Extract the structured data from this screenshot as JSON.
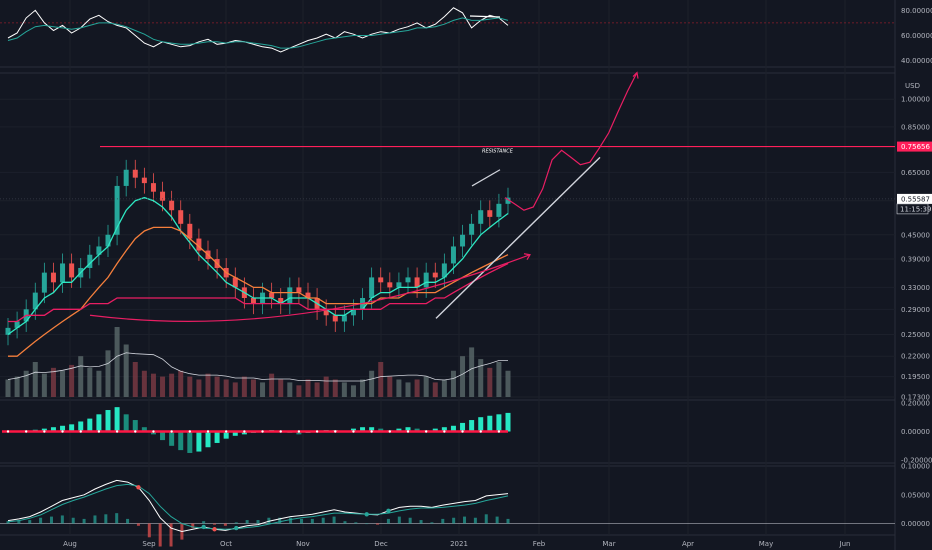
{
  "chart_data": [
    {
      "type": "line",
      "panel": "oscillator-top",
      "ylim": [
        35,
        85
      ],
      "ticks": [
        "80.00000",
        "60.00000",
        "40.00000"
      ],
      "tick_values": [
        80,
        60,
        40
      ],
      "overbought_level": 70,
      "series": [
        {
          "color": "#ffffff",
          "values": [
            58,
            62,
            74,
            80,
            70,
            64,
            68,
            62,
            66,
            73,
            76,
            71,
            68,
            66,
            60,
            54,
            51,
            55,
            53,
            51,
            52,
            55,
            57,
            53,
            54,
            56,
            55,
            53,
            51,
            50,
            47,
            50,
            53,
            56,
            58,
            61,
            58,
            63,
            61,
            58,
            61,
            63,
            62,
            65,
            67,
            70,
            66,
            69,
            75,
            82,
            78,
            66,
            72,
            76,
            74,
            68
          ]
        },
        {
          "color": "#26a69a",
          "values": [
            56,
            58,
            63,
            67,
            68,
            67,
            66,
            65,
            66,
            68,
            70,
            70,
            69,
            67,
            64,
            61,
            57,
            55,
            54,
            53,
            53,
            54,
            55,
            55,
            54,
            55,
            55,
            54,
            53,
            52,
            50,
            50,
            51,
            53,
            55,
            57,
            58,
            59,
            60,
            60,
            60,
            61,
            62,
            63,
            64,
            66,
            66,
            67,
            69,
            72,
            74,
            72,
            72,
            73,
            74,
            72
          ]
        }
      ]
    },
    {
      "type": "candlestick",
      "panel": "price",
      "unit_label": "USD",
      "scale": "log",
      "ylim": [
        0.173,
        1.12
      ],
      "ticks": [
        "1.00000",
        "0.85000",
        "0.65000",
        "0.55000",
        "0.45000",
        "0.39000",
        "0.33000",
        "0.29000",
        "0.25000",
        "0.22000",
        "0.19500",
        "0.17300"
      ],
      "tick_values": [
        1.0,
        0.85,
        0.65,
        0.55,
        0.45,
        0.39,
        0.33,
        0.29,
        0.25,
        0.22,
        0.195,
        0.173
      ],
      "x_labels": [
        "Aug",
        "Sep",
        "Oct",
        "Nov",
        "Dec",
        "2021",
        "Feb",
        "Mar",
        "Apr",
        "May",
        "Jun"
      ],
      "resistance": {
        "value": 0.75656,
        "label": "0.75656",
        "annotation": "RESISTANCE"
      },
      "last_price": {
        "value": 0.55587,
        "label": "0.55587",
        "countdown": "11:15:39"
      },
      "close": [
        0.26,
        0.27,
        0.29,
        0.32,
        0.36,
        0.34,
        0.38,
        0.35,
        0.37,
        0.4,
        0.42,
        0.45,
        0.6,
        0.66,
        0.63,
        0.61,
        0.58,
        0.55,
        0.52,
        0.48,
        0.44,
        0.41,
        0.39,
        0.37,
        0.35,
        0.33,
        0.31,
        0.3,
        0.32,
        0.31,
        0.3,
        0.33,
        0.32,
        0.31,
        0.29,
        0.28,
        0.27,
        0.28,
        0.29,
        0.31,
        0.35,
        0.34,
        0.33,
        0.34,
        0.35,
        0.33,
        0.36,
        0.35,
        0.38,
        0.42,
        0.45,
        0.48,
        0.52,
        0.5,
        0.54,
        0.56
      ],
      "volume": [
        6,
        7,
        9,
        12,
        8,
        10,
        9,
        11,
        14,
        10,
        9,
        16,
        24,
        18,
        12,
        9,
        8,
        7,
        8,
        9,
        7,
        6,
        8,
        7,
        6,
        5,
        7,
        6,
        5,
        8,
        6,
        5,
        4,
        6,
        5,
        7,
        6,
        5,
        4,
        6,
        9,
        12,
        7,
        6,
        5,
        6,
        7,
        5,
        6,
        9,
        14,
        17,
        13,
        10,
        12,
        9
      ],
      "moving_averages": [
        {
          "color": "#2ee8c3",
          "values": [
            0.25,
            0.26,
            0.27,
            0.29,
            0.31,
            0.32,
            0.34,
            0.34,
            0.36,
            0.38,
            0.4,
            0.42,
            0.47,
            0.52,
            0.55,
            0.56,
            0.55,
            0.53,
            0.5,
            0.46,
            0.43,
            0.4,
            0.38,
            0.36,
            0.34,
            0.33,
            0.32,
            0.31,
            0.31,
            0.31,
            0.3,
            0.31,
            0.31,
            0.31,
            0.3,
            0.29,
            0.28,
            0.28,
            0.29,
            0.29,
            0.31,
            0.32,
            0.32,
            0.33,
            0.33,
            0.33,
            0.34,
            0.34,
            0.35,
            0.37,
            0.39,
            0.42,
            0.45,
            0.47,
            0.49,
            0.51
          ]
        },
        {
          "color": "#f57f3c",
          "values": [
            0.22,
            0.22,
            0.23,
            0.24,
            0.25,
            0.26,
            0.27,
            0.28,
            0.29,
            0.31,
            0.33,
            0.35,
            0.38,
            0.41,
            0.44,
            0.46,
            0.47,
            0.47,
            0.47,
            0.46,
            0.44,
            0.42,
            0.4,
            0.38,
            0.36,
            0.35,
            0.34,
            0.33,
            0.33,
            0.32,
            0.32,
            0.32,
            0.32,
            0.31,
            0.31,
            0.3,
            0.3,
            0.3,
            0.3,
            0.3,
            0.3,
            0.31,
            0.31,
            0.31,
            0.32,
            0.32,
            0.32,
            0.32,
            0.33,
            0.34,
            0.35,
            0.36,
            0.37,
            0.38,
            0.39,
            0.4
          ]
        },
        {
          "color": "#e91e63",
          "values": [
            0.27,
            0.27,
            0.28,
            0.28,
            0.28,
            0.29,
            0.29,
            0.29,
            0.29,
            0.3,
            0.3,
            0.3,
            0.31,
            0.31,
            0.31,
            0.31,
            0.31,
            0.31,
            0.31,
            0.31,
            0.31,
            0.31,
            0.31,
            0.31,
            0.31,
            0.31,
            0.3,
            0.3,
            0.3,
            0.3,
            0.3,
            0.3,
            0.3,
            0.29,
            0.29,
            0.29,
            0.29,
            0.29,
            0.29,
            0.29,
            0.29,
            0.29,
            0.3,
            0.3,
            0.3,
            0.3,
            0.3,
            0.31,
            0.31,
            0.32,
            0.33,
            0.34,
            0.35,
            0.36,
            0.37,
            0.38
          ]
        }
      ],
      "projection": {
        "color": "#e91e63",
        "values": [
          0.56,
          0.54,
          0.52,
          0.53,
          0.59,
          0.7,
          0.74,
          0.71,
          0.68,
          0.69,
          0.75,
          0.82,
          0.93,
          1.05,
          1.17
        ]
      }
    },
    {
      "type": "bar",
      "panel": "macd-histogram",
      "ylim": [
        -0.22,
        0.22
      ],
      "ticks": [
        "0.20000",
        "0.00000",
        "-0.20000"
      ],
      "tick_values": [
        0.2,
        0.0,
        -0.2
      ],
      "values": [
        0.002,
        0.004,
        0.008,
        0.012,
        0.02,
        0.03,
        0.04,
        0.05,
        0.07,
        0.09,
        0.12,
        0.15,
        0.17,
        0.12,
        0.08,
        0.03,
        -0.02,
        -0.06,
        -0.1,
        -0.13,
        -0.15,
        -0.14,
        -0.11,
        -0.08,
        -0.05,
        -0.03,
        -0.02,
        -0.01,
        0.0,
        0.01,
        0.0,
        -0.01,
        -0.02,
        -0.01,
        0.0,
        0.01,
        0.01,
        0.0,
        0.02,
        0.03,
        0.03,
        0.02,
        0.01,
        0.02,
        0.03,
        0.02,
        0.01,
        0.02,
        0.03,
        0.04,
        0.06,
        0.08,
        0.1,
        0.11,
        0.12,
        0.13
      ],
      "signal_color": "#ff1744"
    },
    {
      "type": "line",
      "panel": "macd",
      "ylim": [
        -0.02,
        0.1
      ],
      "ticks": [
        "0.10000",
        "0.05000",
        "0.00000"
      ],
      "tick_values": [
        0.1,
        0.05,
        0.0
      ],
      "series": [
        {
          "color": "#ffffff",
          "values": [
            0.005,
            0.008,
            0.012,
            0.02,
            0.03,
            0.04,
            0.045,
            0.05,
            0.06,
            0.068,
            0.075,
            0.072,
            0.063,
            0.04,
            0.01,
            -0.008,
            -0.014,
            -0.01,
            -0.006,
            -0.01,
            -0.012,
            -0.008,
            -0.004,
            -0.002,
            0.004,
            0.008,
            0.012,
            0.014,
            0.016,
            0.02,
            0.024,
            0.02,
            0.018,
            0.016,
            0.015,
            0.022,
            0.028,
            0.03,
            0.03,
            0.028,
            0.032,
            0.035,
            0.038,
            0.04,
            0.048,
            0.05,
            0.052
          ]
        },
        {
          "color": "#26a69a",
          "values": [
            0.003,
            0.005,
            0.009,
            0.015,
            0.024,
            0.033,
            0.04,
            0.046,
            0.053,
            0.06,
            0.066,
            0.068,
            0.065,
            0.052,
            0.03,
            0.012,
            0.0,
            -0.006,
            -0.008,
            -0.009,
            -0.01,
            -0.009,
            -0.007,
            -0.005,
            -0.001,
            0.003,
            0.007,
            0.01,
            0.012,
            0.015,
            0.018,
            0.018,
            0.017,
            0.016,
            0.016,
            0.018,
            0.022,
            0.025,
            0.027,
            0.027,
            0.028,
            0.03,
            0.032,
            0.035,
            0.04,
            0.044,
            0.048
          ]
        }
      ]
    }
  ]
}
